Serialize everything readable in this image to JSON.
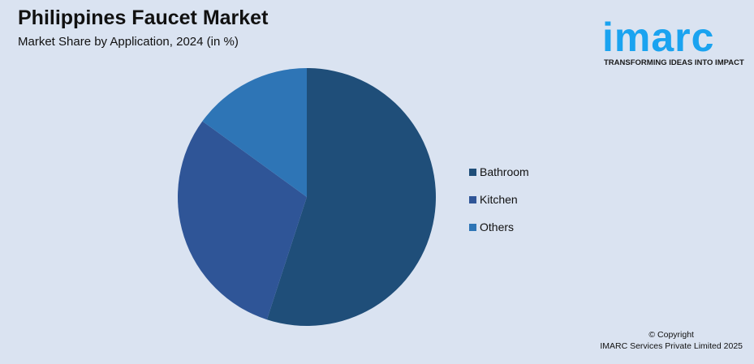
{
  "header": {
    "title": "Philippines Faucet Market",
    "subtitle": "Market Share by Application, 2024 (in %)"
  },
  "logo": {
    "word": "imarc",
    "tagline": "TRANSFORMING IDEAS INTO IMPACT",
    "color": "#1aa3f0"
  },
  "chart_data": {
    "type": "pie",
    "title": "Philippines Faucet Market",
    "subtitle": "Market Share by Application, 2024 (in %)",
    "categories": [
      "Bathroom",
      "Kitchen",
      "Others"
    ],
    "values": [
      55,
      30,
      15
    ],
    "colors": [
      "#1f4e79",
      "#2f5597",
      "#2e75b6"
    ],
    "start_angle": "12 o'clock",
    "direction": "clockwise",
    "legend_position": "right"
  },
  "footer": {
    "copyright": "© Copyright",
    "company": "IMARC Services Private Limited 2025"
  }
}
